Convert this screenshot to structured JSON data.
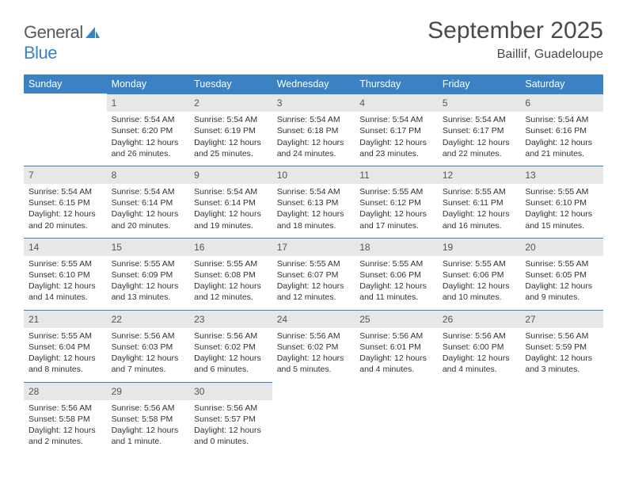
{
  "logo": {
    "text1": "General",
    "text2": "Blue"
  },
  "title": "September 2025",
  "location": "Baillif, Guadeloupe",
  "colors": {
    "header_bg": "#3b82c4",
    "header_text": "#ffffff",
    "daynum_bg": "#e7e7e7",
    "daynum_border": "#3b82c4",
    "text": "#323232",
    "page_bg": "#ffffff"
  },
  "weekdays": [
    "Sunday",
    "Monday",
    "Tuesday",
    "Wednesday",
    "Thursday",
    "Friday",
    "Saturday"
  ],
  "days": [
    {
      "n": "",
      "sunrise": "",
      "sunset": "",
      "daylight": ""
    },
    {
      "n": "1",
      "sunrise": "Sunrise: 5:54 AM",
      "sunset": "Sunset: 6:20 PM",
      "daylight": "Daylight: 12 hours and 26 minutes."
    },
    {
      "n": "2",
      "sunrise": "Sunrise: 5:54 AM",
      "sunset": "Sunset: 6:19 PM",
      "daylight": "Daylight: 12 hours and 25 minutes."
    },
    {
      "n": "3",
      "sunrise": "Sunrise: 5:54 AM",
      "sunset": "Sunset: 6:18 PM",
      "daylight": "Daylight: 12 hours and 24 minutes."
    },
    {
      "n": "4",
      "sunrise": "Sunrise: 5:54 AM",
      "sunset": "Sunset: 6:17 PM",
      "daylight": "Daylight: 12 hours and 23 minutes."
    },
    {
      "n": "5",
      "sunrise": "Sunrise: 5:54 AM",
      "sunset": "Sunset: 6:17 PM",
      "daylight": "Daylight: 12 hours and 22 minutes."
    },
    {
      "n": "6",
      "sunrise": "Sunrise: 5:54 AM",
      "sunset": "Sunset: 6:16 PM",
      "daylight": "Daylight: 12 hours and 21 minutes."
    },
    {
      "n": "7",
      "sunrise": "Sunrise: 5:54 AM",
      "sunset": "Sunset: 6:15 PM",
      "daylight": "Daylight: 12 hours and 20 minutes."
    },
    {
      "n": "8",
      "sunrise": "Sunrise: 5:54 AM",
      "sunset": "Sunset: 6:14 PM",
      "daylight": "Daylight: 12 hours and 20 minutes."
    },
    {
      "n": "9",
      "sunrise": "Sunrise: 5:54 AM",
      "sunset": "Sunset: 6:14 PM",
      "daylight": "Daylight: 12 hours and 19 minutes."
    },
    {
      "n": "10",
      "sunrise": "Sunrise: 5:54 AM",
      "sunset": "Sunset: 6:13 PM",
      "daylight": "Daylight: 12 hours and 18 minutes."
    },
    {
      "n": "11",
      "sunrise": "Sunrise: 5:55 AM",
      "sunset": "Sunset: 6:12 PM",
      "daylight": "Daylight: 12 hours and 17 minutes."
    },
    {
      "n": "12",
      "sunrise": "Sunrise: 5:55 AM",
      "sunset": "Sunset: 6:11 PM",
      "daylight": "Daylight: 12 hours and 16 minutes."
    },
    {
      "n": "13",
      "sunrise": "Sunrise: 5:55 AM",
      "sunset": "Sunset: 6:10 PM",
      "daylight": "Daylight: 12 hours and 15 minutes."
    },
    {
      "n": "14",
      "sunrise": "Sunrise: 5:55 AM",
      "sunset": "Sunset: 6:10 PM",
      "daylight": "Daylight: 12 hours and 14 minutes."
    },
    {
      "n": "15",
      "sunrise": "Sunrise: 5:55 AM",
      "sunset": "Sunset: 6:09 PM",
      "daylight": "Daylight: 12 hours and 13 minutes."
    },
    {
      "n": "16",
      "sunrise": "Sunrise: 5:55 AM",
      "sunset": "Sunset: 6:08 PM",
      "daylight": "Daylight: 12 hours and 12 minutes."
    },
    {
      "n": "17",
      "sunrise": "Sunrise: 5:55 AM",
      "sunset": "Sunset: 6:07 PM",
      "daylight": "Daylight: 12 hours and 12 minutes."
    },
    {
      "n": "18",
      "sunrise": "Sunrise: 5:55 AM",
      "sunset": "Sunset: 6:06 PM",
      "daylight": "Daylight: 12 hours and 11 minutes."
    },
    {
      "n": "19",
      "sunrise": "Sunrise: 5:55 AM",
      "sunset": "Sunset: 6:06 PM",
      "daylight": "Daylight: 12 hours and 10 minutes."
    },
    {
      "n": "20",
      "sunrise": "Sunrise: 5:55 AM",
      "sunset": "Sunset: 6:05 PM",
      "daylight": "Daylight: 12 hours and 9 minutes."
    },
    {
      "n": "21",
      "sunrise": "Sunrise: 5:55 AM",
      "sunset": "Sunset: 6:04 PM",
      "daylight": "Daylight: 12 hours and 8 minutes."
    },
    {
      "n": "22",
      "sunrise": "Sunrise: 5:56 AM",
      "sunset": "Sunset: 6:03 PM",
      "daylight": "Daylight: 12 hours and 7 minutes."
    },
    {
      "n": "23",
      "sunrise": "Sunrise: 5:56 AM",
      "sunset": "Sunset: 6:02 PM",
      "daylight": "Daylight: 12 hours and 6 minutes."
    },
    {
      "n": "24",
      "sunrise": "Sunrise: 5:56 AM",
      "sunset": "Sunset: 6:02 PM",
      "daylight": "Daylight: 12 hours and 5 minutes."
    },
    {
      "n": "25",
      "sunrise": "Sunrise: 5:56 AM",
      "sunset": "Sunset: 6:01 PM",
      "daylight": "Daylight: 12 hours and 4 minutes."
    },
    {
      "n": "26",
      "sunrise": "Sunrise: 5:56 AM",
      "sunset": "Sunset: 6:00 PM",
      "daylight": "Daylight: 12 hours and 4 minutes."
    },
    {
      "n": "27",
      "sunrise": "Sunrise: 5:56 AM",
      "sunset": "Sunset: 5:59 PM",
      "daylight": "Daylight: 12 hours and 3 minutes."
    },
    {
      "n": "28",
      "sunrise": "Sunrise: 5:56 AM",
      "sunset": "Sunset: 5:58 PM",
      "daylight": "Daylight: 12 hours and 2 minutes."
    },
    {
      "n": "29",
      "sunrise": "Sunrise: 5:56 AM",
      "sunset": "Sunset: 5:58 PM",
      "daylight": "Daylight: 12 hours and 1 minute."
    },
    {
      "n": "30",
      "sunrise": "Sunrise: 5:56 AM",
      "sunset": "Sunset: 5:57 PM",
      "daylight": "Daylight: 12 hours and 0 minutes."
    }
  ]
}
